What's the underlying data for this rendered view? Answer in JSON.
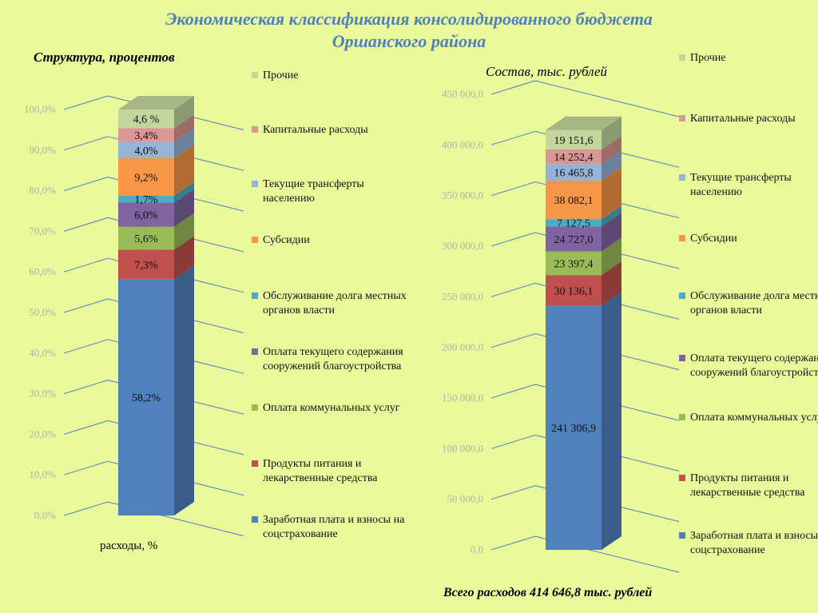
{
  "title_line1": "Экономическая классификация консолидированного бюджета",
  "title_line2": "Оршанского района",
  "footer": "Всего расходов 414 646,8 тыс. рублей",
  "colors": {
    "series": [
      "#4f81bd",
      "#c0504d",
      "#9bbb59",
      "#8064a2",
      "#4bacc6",
      "#f79646",
      "#95b3d7",
      "#d99694",
      "#c3d69b"
    ],
    "grid": "#4f81bd",
    "tick": "#b0b0b0"
  },
  "chart_data": [
    {
      "type": "bar",
      "subtitle": "Структура, процентов",
      "categories": [
        "расходы, %"
      ],
      "ylim": [
        0,
        100
      ],
      "y_ticks": [
        "0,0%",
        "10,0%",
        "20,0%",
        "30,0%",
        "40,0%",
        "50,0%",
        "60,0%",
        "70,0%",
        "80,0%",
        "90,0%",
        "100,0%"
      ],
      "stacked": true,
      "series": [
        {
          "name": "Заработная плата и взносы на соцстрахование",
          "values": [
            58.2
          ],
          "label": "58,2%"
        },
        {
          "name": "Продукты питания и лекарственные средства",
          "values": [
            7.3
          ],
          "label": "7,3%"
        },
        {
          "name": "Оплата коммунальных услуг",
          "values": [
            5.6
          ],
          "label": "5,6%"
        },
        {
          "name": "Оплата текущего содержания сооружений благоустройства",
          "values": [
            6.0
          ],
          "label": "6,0%"
        },
        {
          "name": "Обслуживание долга местных органов власти",
          "values": [
            1.7
          ],
          "label": "1,7%"
        },
        {
          "name": "Субсидии",
          "values": [
            9.2
          ],
          "label": "9,2%"
        },
        {
          "name": "Текущие трансферты населению",
          "values": [
            4.0
          ],
          "label": "4,0%"
        },
        {
          "name": "Капитальные расходы",
          "values": [
            3.4
          ],
          "label": "3,4%"
        },
        {
          "name": "Прочие",
          "values": [
            4.6
          ],
          "label": "4,6 %"
        }
      ]
    },
    {
      "type": "bar",
      "subtitle": "Состав,  тыс. рублей",
      "categories": [
        ""
      ],
      "ylim": [
        0,
        450000
      ],
      "y_ticks": [
        "0,0",
        "50 000,0",
        "100 000,0",
        "150 000,0",
        "200 000,0",
        "250 000,0",
        "300 000,0",
        "350 000,0",
        "400 000,0",
        "450 000,0"
      ],
      "stacked": true,
      "series": [
        {
          "name": "Заработная плата и взносы на соцстрахование",
          "values": [
            241306.9
          ],
          "label": "241 306,9"
        },
        {
          "name": "Продукты питания и лекарственные средства",
          "values": [
            30136.1
          ],
          "label": "30 136,1"
        },
        {
          "name": "Оплата коммунальных услуг",
          "values": [
            23397.4
          ],
          "label": "23 397,4"
        },
        {
          "name": "Оплата текущего содержания сооружений благоустройства",
          "values": [
            24727.0
          ],
          "label": "24 727,0"
        },
        {
          "name": "Обслуживание долга местных органов власти",
          "values": [
            7127.5
          ],
          "label": "7 127,5"
        },
        {
          "name": "Субсидии",
          "values": [
            38082.1
          ],
          "label": "38 082,1"
        },
        {
          "name": "Текущие трансферты населению",
          "values": [
            16465.8
          ],
          "label": "16 465,8"
        },
        {
          "name": "Капитальные расходы",
          "values": [
            14252.4
          ],
          "label": "14 252,4"
        },
        {
          "name": "Прочие",
          "values": [
            19151.6
          ],
          "label": "19 151,6"
        }
      ]
    }
  ],
  "legend_left": [
    "Прочие",
    "Капитальные расходы",
    "Текущие трансферты населению",
    "Субсидии",
    "Обслуживание долга местных органов власти",
    "Оплата текущего содержания сооружений благоустройства",
    "Оплата коммунальных услуг",
    "Продукты питания и лекарственные средства",
    "Заработная плата и взносы на соцстрахование"
  ],
  "legend_right": [
    "Прочие",
    "Капитальные расходы",
    "Текущие трансферты населению",
    "Субсидии",
    "Обслуживание долга местных органов власти",
    "Оплата текущего содержания сооружений благоустройства",
    "Оплата коммунальных услуг",
    "Продукты питания и лекарственные средства",
    "Заработная плата и взносы на соцстрахование"
  ]
}
